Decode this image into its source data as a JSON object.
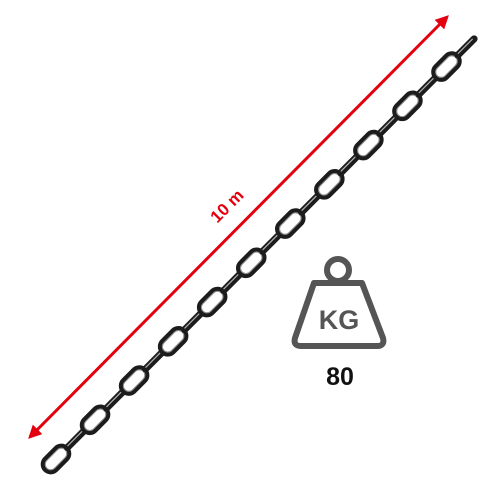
{
  "length_label": "10 m",
  "weight": {
    "unit_label": "KG",
    "value": "80"
  },
  "colors": {
    "measurement_line": "#e3000f",
    "chain": "#1c1c1c",
    "chain_highlight": "#f2f2f2",
    "weight_icon": "#555555",
    "text": "#111111"
  },
  "icons": [
    "chain-icon",
    "double-arrow-icon",
    "weight-kg-icon"
  ]
}
